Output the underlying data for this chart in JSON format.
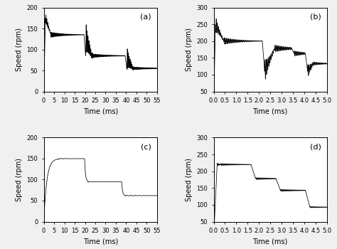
{
  "fig_width": 4.74,
  "fig_height": 3.5,
  "dpi": 100,
  "bg_color": "#f0f0f0",
  "subplots": [
    {
      "label": "(a)",
      "xlim": [
        0,
        55
      ],
      "ylim": [
        0,
        200
      ],
      "xticks": [
        0,
        5,
        10,
        15,
        20,
        25,
        30,
        35,
        40,
        45,
        50,
        55
      ],
      "yticks": [
        0,
        50,
        100,
        150,
        200
      ],
      "xlabel": "Time (ms)",
      "ylabel": "Speed (rpm)"
    },
    {
      "label": "(b)",
      "xlim": [
        0,
        5
      ],
      "ylim": [
        50,
        300
      ],
      "xticks": [
        0,
        0.5,
        1,
        1.5,
        2,
        2.5,
        3,
        3.5,
        4,
        4.5,
        5
      ],
      "yticks": [
        50,
        100,
        150,
        200,
        250,
        300
      ],
      "xlabel": "Time (ms)",
      "ylabel": "Speed (rpm)"
    },
    {
      "label": "(c)",
      "xlim": [
        0,
        55
      ],
      "ylim": [
        0,
        200
      ],
      "xticks": [
        0,
        5,
        10,
        15,
        20,
        25,
        30,
        35,
        40,
        45,
        50,
        55
      ],
      "yticks": [
        0,
        50,
        100,
        150,
        200
      ],
      "xlabel": "Time (ms)",
      "ylabel": "Speed (rpm)"
    },
    {
      "label": "(d)",
      "xlim": [
        0,
        5
      ],
      "ylim": [
        50,
        300
      ],
      "xticks": [
        0,
        0.5,
        1,
        1.5,
        2,
        2.5,
        3,
        3.5,
        4,
        4.5,
        5
      ],
      "yticks": [
        50,
        100,
        150,
        200,
        250,
        300
      ],
      "xlabel": "Time (ms)",
      "ylabel": "Speed (rpm)"
    }
  ]
}
